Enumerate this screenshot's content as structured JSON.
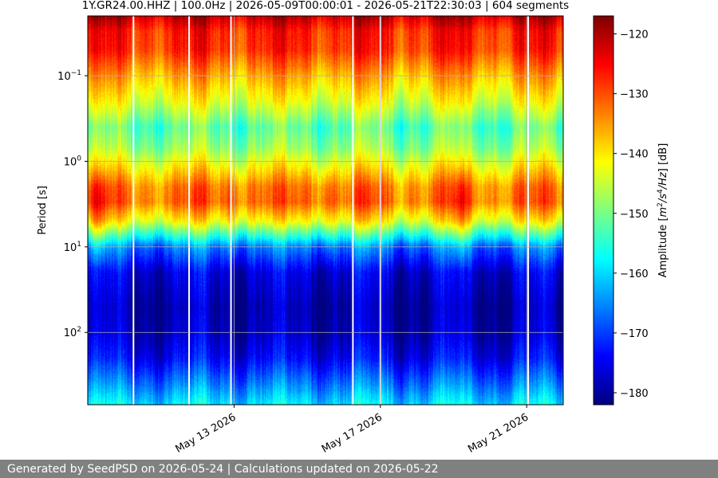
{
  "footer_text": "Generated by SeedPSD on 2026-05-24 | Calculations updated on 2026-05-22",
  "chart_data": {
    "type": "heatmap",
    "title": "1Y.GR24.00.HHZ | 100.0Hz | 2026-05-09T00:00:01 - 2026-05-21T22:30:03 | 604 segments",
    "xlabel": "",
    "ylabel": "Period [s]",
    "colorbar_label": "Amplitude [m2/s4/Hz] [dB]",
    "colorbar_label_parts": {
      "prefix": "Amplitude [",
      "m": "m",
      "exp1": "2",
      "s": "/s",
      "exp2": "4",
      "hz": "/Hz",
      "suffix": "] [dB]"
    },
    "colormap": "jet",
    "x_axis": {
      "type": "date",
      "range": [
        "2026-05-09",
        "2026-05-22"
      ],
      "tick_labels": [
        "May 13 2026",
        "May 17 2026",
        "May 21 2026"
      ],
      "tick_dates": [
        "2026-05-13",
        "2026-05-17",
        "2026-05-21"
      ]
    },
    "y_axis": {
      "scale": "log",
      "inverted": true,
      "range": [
        0.02,
        700
      ],
      "ticks": [
        {
          "value": 0.1,
          "base": "10",
          "exp": "−1"
        },
        {
          "value": 1,
          "base": "10",
          "exp": "0"
        },
        {
          "value": 10,
          "base": "10",
          "exp": "1"
        },
        {
          "value": 100,
          "base": "10",
          "exp": "2"
        }
      ]
    },
    "color_range": [
      -182,
      -117
    ],
    "colorbar_ticks": [
      "−120",
      "−130",
      "−140",
      "−150",
      "−160",
      "−170",
      "−180"
    ],
    "colorbar_tick_values": [
      -120,
      -130,
      -140,
      -150,
      -160,
      -170,
      -180
    ],
    "grid": true,
    "data_gaps": [
      "2026-05-10T06:00",
      "2026-05-11T18:30",
      "2026-05-12T22:00",
      "2026-05-16T06:00",
      "2026-05-17T00:00",
      "2026-05-21T01:00"
    ],
    "spectral_profile": {
      "period_s": [
        0.02,
        0.03,
        0.05,
        0.1,
        0.2,
        0.4,
        0.7,
        1.0,
        2.0,
        3.0,
        5.0,
        8.0,
        10.0,
        20.0,
        50.0,
        100.0,
        200.0,
        400.0,
        700.0
      ],
      "median_db": [
        -121,
        -127,
        -128,
        -136,
        -143,
        -152,
        -148,
        -143,
        -133,
        -132,
        -142,
        -158,
        -166,
        -176,
        -179,
        -178,
        -174,
        -166,
        -159
      ]
    }
  }
}
